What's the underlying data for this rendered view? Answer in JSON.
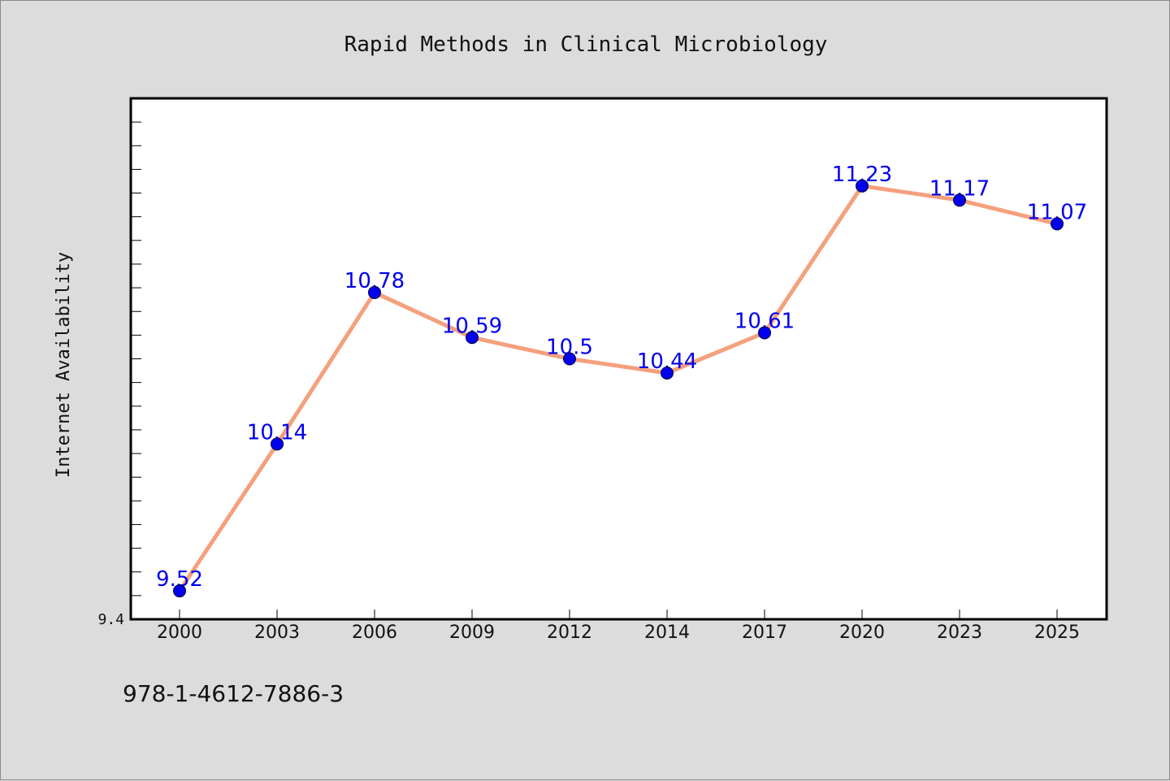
{
  "colors": {
    "background": "#dcdcdc",
    "plot_background": "#ffffff",
    "line": "#f5a07d",
    "marker": "#0000ee",
    "label": "#0000ee",
    "axis": "#000000"
  },
  "footnote": "978-1-4612-7886-3",
  "chart_data": {
    "type": "line",
    "title": "Rapid Methods in Clinical Microbiology",
    "xlabel": "",
    "ylabel": "Internet Availability",
    "categories": [
      "2000",
      "2003",
      "2006",
      "2009",
      "2012",
      "2014",
      "2017",
      "2020",
      "2023",
      "2025"
    ],
    "values": [
      9.52,
      10.14,
      10.78,
      10.59,
      10.5,
      10.44,
      10.61,
      11.23,
      11.17,
      11.07
    ],
    "data_labels": [
      "9.52",
      "10.14",
      "10.78",
      "10.59",
      "10.5",
      "10.44",
      "10.61",
      "11.23",
      "11.17",
      "11.07"
    ],
    "ylim": [
      9.4,
      11.6
    ],
    "ytick_labels": [
      "9.4"
    ],
    "minor_tick_step": 0.1,
    "grid": false,
    "legend": "none"
  }
}
